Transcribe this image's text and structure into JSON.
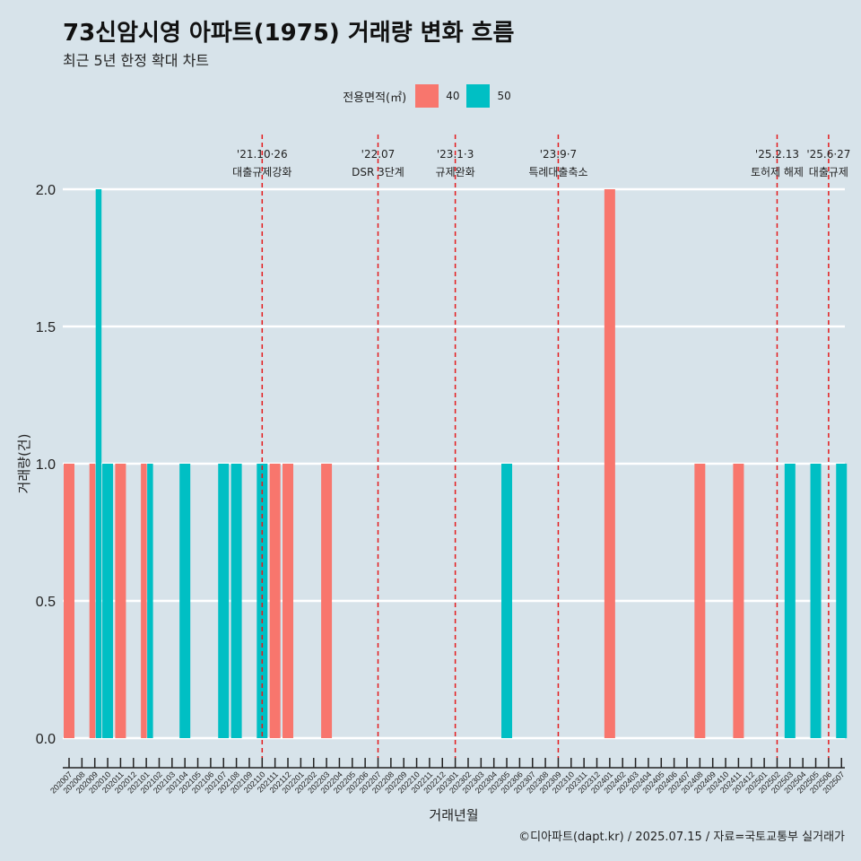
{
  "title": "73신암시영 아파트(1975) 거래량 변화 흐름",
  "subtitle": "최근 5년 한정 확대 차트",
  "caption": "©디아파트(dapt.kr) / 2025.07.15 / 자료=국토교통부 실거래가",
  "colors": {
    "background": "#d7e3ea",
    "area40": "#f8766d",
    "area50": "#00bfc4",
    "event_line": "#e41a1c"
  },
  "chart_data": {
    "type": "bar",
    "xlabel": "거래년월",
    "ylabel": "거래량(건)",
    "ylim": [
      0,
      2
    ],
    "yticks": [
      "0.0",
      "0.5",
      "1.0",
      "1.5",
      "2.0"
    ],
    "grid": true,
    "legend": {
      "title": "전용면적(㎡)",
      "position": "top",
      "items": [
        "40",
        "50"
      ]
    },
    "categories": [
      "202007",
      "202008",
      "202009",
      "202010",
      "202011",
      "202012",
      "202101",
      "202102",
      "202103",
      "202104",
      "202105",
      "202106",
      "202107",
      "202108",
      "202109",
      "202110",
      "202111",
      "202112",
      "202201",
      "202202",
      "202203",
      "202204",
      "202205",
      "202206",
      "202207",
      "202208",
      "202209",
      "202210",
      "202211",
      "202212",
      "202301",
      "202302",
      "202303",
      "202304",
      "202305",
      "202306",
      "202307",
      "202308",
      "202309",
      "202310",
      "202311",
      "202312",
      "202401",
      "202402",
      "202403",
      "202404",
      "202405",
      "202406",
      "202407",
      "202408",
      "202409",
      "202410",
      "202411",
      "202412",
      "202501",
      "202502",
      "202503",
      "202504",
      "202505",
      "202506",
      "202507"
    ],
    "series": [
      {
        "name": "40",
        "values": [
          1,
          0,
          1,
          0,
          1,
          0,
          1,
          0,
          0,
          0,
          0,
          0,
          0,
          0,
          0,
          0,
          1,
          1,
          0,
          0,
          1,
          0,
          0,
          0,
          0,
          0,
          0,
          0,
          0,
          0,
          0,
          0,
          0,
          0,
          0,
          0,
          0,
          0,
          0,
          0,
          0,
          0,
          2,
          0,
          0,
          0,
          0,
          0,
          0,
          1,
          0,
          0,
          1,
          0,
          0,
          0,
          0,
          0,
          0,
          0,
          0
        ]
      },
      {
        "name": "50",
        "values": [
          0,
          0,
          2,
          1,
          0,
          0,
          1,
          0,
          0,
          1,
          0,
          0,
          1,
          1,
          0,
          1,
          0,
          0,
          0,
          0,
          0,
          0,
          0,
          0,
          0,
          0,
          0,
          0,
          0,
          0,
          0,
          0,
          0,
          0,
          1,
          0,
          0,
          0,
          0,
          0,
          0,
          0,
          0,
          0,
          0,
          0,
          0,
          0,
          0,
          0,
          0,
          0,
          0,
          0,
          0,
          0,
          1,
          0,
          1,
          0,
          1
        ]
      }
    ],
    "annotations": [
      {
        "x": "202110",
        "date": "'21.10·26",
        "text": "대출규제강화"
      },
      {
        "x": "202207",
        "date": "'22.07",
        "text": "DSR 3단계"
      },
      {
        "x": "202301",
        "date": "'23.1·3",
        "text": "규제완화"
      },
      {
        "x": "202309",
        "date": "'23.9·7",
        "text": "특례대출축소"
      },
      {
        "x": "202502",
        "date": "'25.2.13",
        "text": "토허제 해제"
      },
      {
        "x": "202506",
        "date": "'25.6·27",
        "text": "대출규제"
      }
    ]
  }
}
